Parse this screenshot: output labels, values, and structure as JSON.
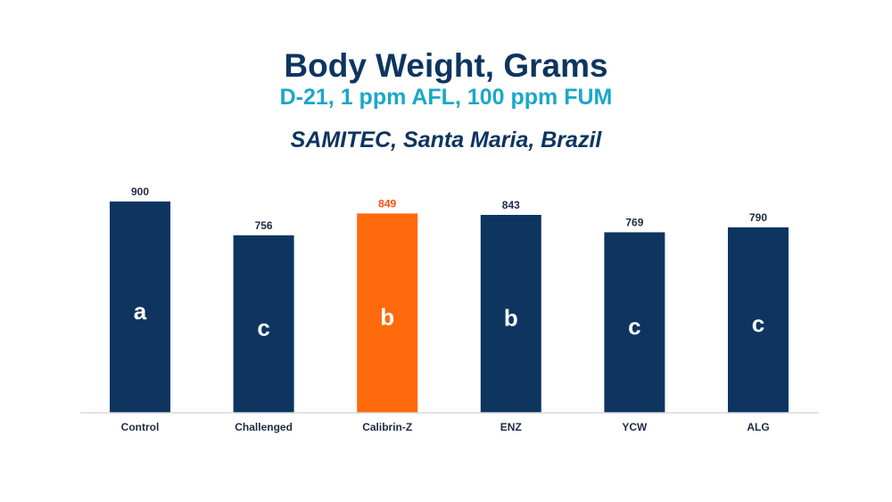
{
  "chart_data": {
    "type": "bar",
    "title": "Body Weight, Grams",
    "subtitle": "D-21, 1 ppm AFL, 100 ppm FUM",
    "subtitle2": "SAMITEC, Santa Maria, Brazil",
    "xlabel": "",
    "ylabel": "",
    "categories": [
      "Control",
      "Challenged",
      "Calibrin-Z",
      "ENZ",
      "YCW",
      "ALG"
    ],
    "values": [
      900,
      756,
      849,
      843,
      769,
      790
    ],
    "value_labels": [
      "900",
      "756",
      "849",
      "843",
      "769",
      "790"
    ],
    "letters": [
      "a",
      "c",
      "b",
      "b",
      "c",
      "c"
    ],
    "ylim": [
      0,
      900
    ],
    "grid": false,
    "legend": "none",
    "bar_colors": [
      "#0d3560",
      "#0d3560",
      "#ff6a0d",
      "#0d3560",
      "#0d3560",
      "#0d3560"
    ],
    "value_label_colors": [
      "#1f2a44",
      "#1f2a44",
      "#ff4a0a",
      "#1f2a44",
      "#1f2a44",
      "#1f2a44"
    ],
    "axis_color": "#d9d9d9"
  }
}
